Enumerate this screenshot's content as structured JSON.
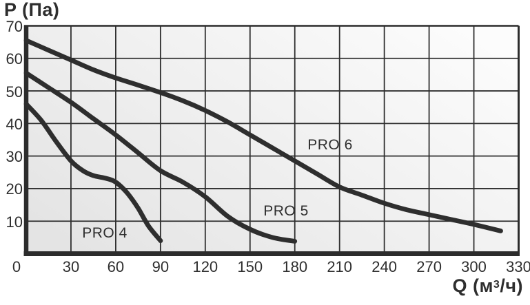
{
  "chart_data": {
    "type": "line",
    "title": "",
    "ylabel": "P (Па)",
    "xlabel": "Q (м³/ч)",
    "xlabel_parts": [
      "Q (м",
      "3",
      "/ч)"
    ],
    "xlim": [
      0,
      330
    ],
    "ylim": [
      0,
      70
    ],
    "x_ticks": [
      0,
      30,
      60,
      90,
      120,
      150,
      180,
      210,
      240,
      270,
      300,
      330
    ],
    "y_ticks": [
      10,
      20,
      30,
      40,
      50,
      60,
      70
    ],
    "grid": true,
    "legend_position": "labels-on-chart",
    "series": [
      {
        "name": "PRO 4",
        "points": [
          [
            0,
            46
          ],
          [
            10,
            41
          ],
          [
            20,
            34.5
          ],
          [
            30,
            28.5
          ],
          [
            38,
            25.5
          ],
          [
            45,
            24
          ],
          [
            52,
            23.3
          ],
          [
            58,
            22.5
          ],
          [
            62,
            21.3
          ],
          [
            68,
            18.5
          ],
          [
            75,
            14
          ],
          [
            82,
            8.5
          ],
          [
            90,
            4
          ]
        ]
      },
      {
        "name": "PRO 5",
        "points": [
          [
            0,
            55.5
          ],
          [
            15,
            51
          ],
          [
            30,
            46.5
          ],
          [
            45,
            41.5
          ],
          [
            60,
            36.5
          ],
          [
            75,
            31
          ],
          [
            90,
            25.5
          ],
          [
            105,
            22
          ],
          [
            120,
            17.5
          ],
          [
            135,
            11.5
          ],
          [
            150,
            7.5
          ],
          [
            165,
            5
          ],
          [
            180,
            3.8
          ]
        ]
      },
      {
        "name": "PRO 6",
        "points": [
          [
            0,
            65.5
          ],
          [
            15,
            62.5
          ],
          [
            30,
            59.5
          ],
          [
            45,
            56.5
          ],
          [
            60,
            54
          ],
          [
            75,
            51.8
          ],
          [
            90,
            49.5
          ],
          [
            105,
            47
          ],
          [
            120,
            44
          ],
          [
            135,
            40.5
          ],
          [
            150,
            36.5
          ],
          [
            165,
            32.5
          ],
          [
            180,
            28.5
          ],
          [
            195,
            24.5
          ],
          [
            210,
            20.5
          ],
          [
            225,
            18
          ],
          [
            240,
            15.5
          ],
          [
            255,
            13.5
          ],
          [
            270,
            12
          ],
          [
            285,
            10.5
          ],
          [
            300,
            9
          ],
          [
            318,
            7
          ]
        ]
      }
    ],
    "colors": {
      "curve": "#2e2e2e",
      "grid": "#2f2f2f",
      "axis": "#2c2c2c",
      "text": "#2e2e2e",
      "plot_bg_from": "#e4e4e4",
      "plot_bg_to": "#fcfcfc",
      "page_bg": "#ffffff"
    }
  }
}
